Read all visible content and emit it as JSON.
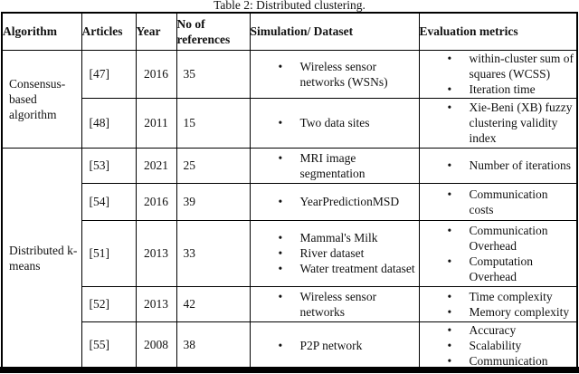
{
  "caption": "Table 2: Distributed clustering.",
  "columns": {
    "algorithm": "Algorithm",
    "articles": "Articles",
    "year": "Year",
    "refs": "No of references",
    "simulation": "Simulation/ Dataset",
    "metrics": "Evaluation metrics"
  },
  "groups": [
    {
      "algorithm": "Consensus-based algorithm",
      "rows": [
        {
          "article": "[47]",
          "year": "2016",
          "refs": "35",
          "simulation": [
            "Wireless sensor networks (WSNs)"
          ],
          "metrics": [
            "within-cluster sum of squares (WCSS)",
            "Iteration time"
          ]
        },
        {
          "article": "[48]",
          "year": "2011",
          "refs": "15",
          "simulation": [
            "Two data sites"
          ],
          "metrics": [
            "Xie-Beni (XB) fuzzy clustering validity index"
          ]
        }
      ]
    },
    {
      "algorithm": "Distributed k-means",
      "rows": [
        {
          "article": "[53]",
          "year": "2021",
          "refs": "25",
          "simulation": [
            "MRI image segmentation"
          ],
          "metrics": [
            "Number of iterations"
          ]
        },
        {
          "article": "[54]",
          "year": "2016",
          "refs": "39",
          "simulation": [
            "YearPredictionMSD"
          ],
          "metrics": [
            "Communication costs"
          ]
        },
        {
          "article": "[51]",
          "year": "2013",
          "refs": "33",
          "simulation": [
            "Mammal's Milk",
            "River dataset",
            "Water treatment dataset"
          ],
          "metrics": [
            "Communication Overhead",
            "Computation Overhead"
          ]
        },
        {
          "article": "[52]",
          "year": "2013",
          "refs": "42",
          "simulation": [
            "Wireless sensor networks"
          ],
          "metrics": [
            "Time complexity",
            "Memory complexity"
          ]
        },
        {
          "article": "[55]",
          "year": "2008",
          "refs": "38",
          "simulation": [
            "P2P network"
          ],
          "metrics": [
            "Accuracy",
            "Scalability",
            "Communication"
          ]
        }
      ]
    }
  ],
  "colors": {
    "text": "#111111",
    "border": "#000000",
    "background": "#ffffff"
  }
}
